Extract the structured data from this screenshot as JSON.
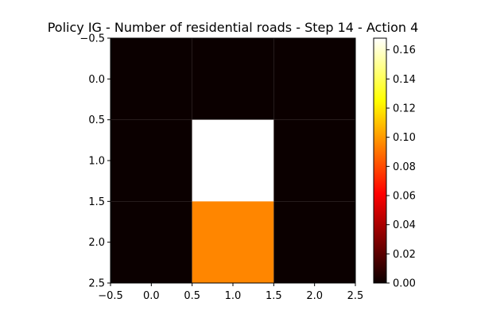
{
  "chart_data": {
    "type": "heatmap",
    "title": "Policy IG - Number of residential roads - Step 14 - Action 4",
    "x_tick_labels": [
      "−0.5",
      "0.0",
      "0.5",
      "1.0",
      "1.5",
      "2.0",
      "2.5"
    ],
    "y_tick_labels": [
      "−0.5",
      "0.0",
      "0.5",
      "1.0",
      "1.5",
      "2.0",
      "2.5"
    ],
    "x_ticks": [
      -0.5,
      0.0,
      0.5,
      1.0,
      1.5,
      2.0,
      2.5
    ],
    "y_ticks": [
      -0.5,
      0.0,
      0.5,
      1.0,
      1.5,
      2.0,
      2.5
    ],
    "xlim": [
      -0.5,
      2.5
    ],
    "ylim": [
      2.5,
      -0.5
    ],
    "rows": 3,
    "cols": 3,
    "values": [
      [
        0.0,
        0.0,
        0.0
      ],
      [
        0.0,
        0.168,
        0.0
      ],
      [
        0.0,
        0.095,
        0.0
      ]
    ],
    "colormap": "hot",
    "colorbar": {
      "min": 0.0,
      "max": 0.168,
      "ticks": [
        0.0,
        0.02,
        0.04,
        0.06,
        0.08,
        0.1,
        0.12,
        0.14,
        0.16
      ],
      "tick_labels": [
        "0.00",
        "0.02",
        "0.04",
        "0.06",
        "0.08",
        "0.10",
        "0.12",
        "0.14",
        "0.16"
      ]
    },
    "grid": false,
    "legend": "none"
  }
}
